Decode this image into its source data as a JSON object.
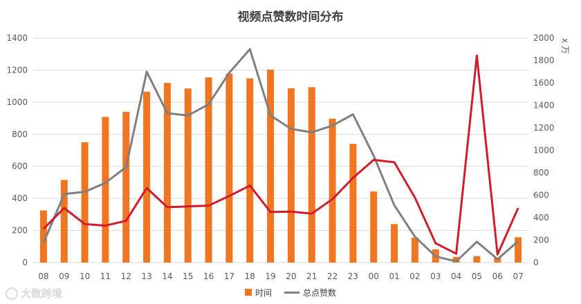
{
  "chart_data": {
    "type": "bar+line",
    "title": "视频点赞数时间分布",
    "categories": [
      "08",
      "09",
      "10",
      "11",
      "12",
      "13",
      "14",
      "15",
      "16",
      "17",
      "18",
      "19",
      "20",
      "21",
      "22",
      "23",
      "00",
      "01",
      "02",
      "03",
      "04",
      "05",
      "06",
      "07"
    ],
    "left_axis": {
      "ylim": [
        0,
        1400
      ],
      "ticks": [
        0,
        200,
        400,
        600,
        800,
        1000,
        1200,
        1400
      ]
    },
    "right_axis": {
      "ylim": [
        0,
        2000
      ],
      "ticks": [
        0,
        200,
        400,
        600,
        800,
        1000,
        1200,
        1400,
        1600,
        1800,
        2000
      ],
      "unit_label": "x 万"
    },
    "series": [
      {
        "name": "时间",
        "type": "bar",
        "axis": "left",
        "color": "#f07622",
        "values": [
          325,
          515,
          750,
          908,
          940,
          1065,
          1120,
          1085,
          1155,
          1178,
          1148,
          1203,
          1087,
          1093,
          897,
          740,
          443,
          240,
          155,
          82,
          35,
          40,
          30,
          158
        ]
      },
      {
        "name": "总点赞数",
        "type": "line",
        "axis": "right",
        "color": "#7f7f7f",
        "values": [
          175,
          610,
          630,
          710,
          850,
          1700,
          1330,
          1310,
          1410,
          1690,
          1900,
          1310,
          1190,
          1160,
          1220,
          1320,
          950,
          510,
          230,
          55,
          10,
          185,
          30,
          190
        ]
      },
      {
        "name": "",
        "type": "line",
        "axis": "left",
        "color": "#d01c2a",
        "show_in_legend": false,
        "values": [
          210,
          340,
          240,
          230,
          260,
          465,
          345,
          350,
          355,
          415,
          480,
          315,
          318,
          305,
          395,
          528,
          640,
          625,
          405,
          120,
          55,
          1290,
          50,
          340
        ]
      }
    ],
    "legend": {
      "position": "bottom"
    }
  },
  "watermark": {
    "text": "大数跨境"
  }
}
